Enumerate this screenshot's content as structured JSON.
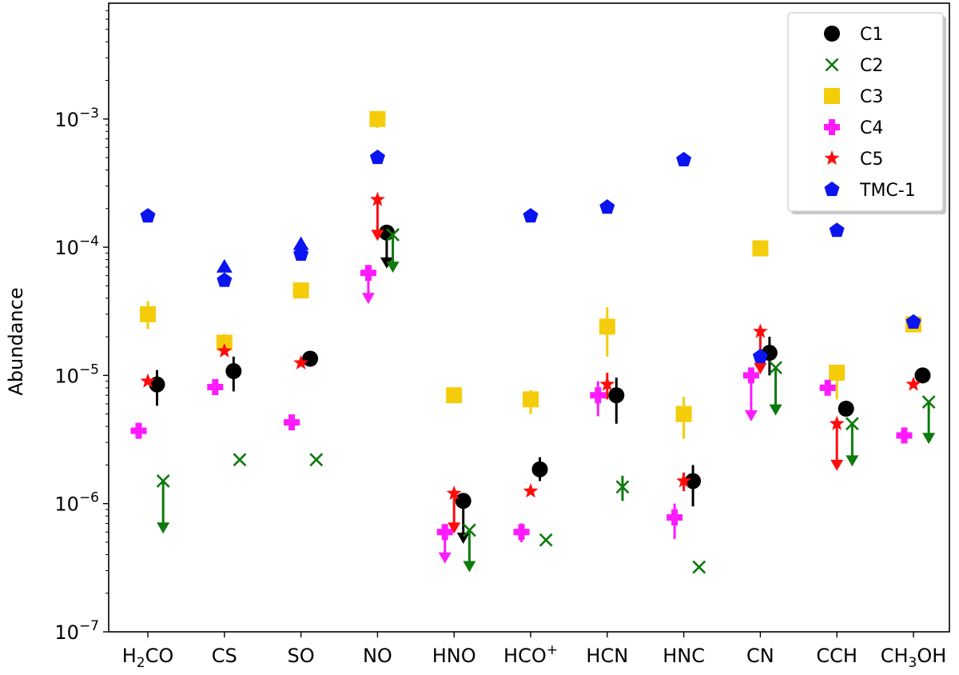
{
  "chart_data": {
    "type": "scatter",
    "title": "",
    "xlabel": "",
    "ylabel": "Abundance",
    "yscale": "log",
    "ylim": [
      1e-07,
      0.008
    ],
    "yticks": [
      {
        "value": 1e-07,
        "base": "10",
        "exp": "−7"
      },
      {
        "value": 1e-06,
        "base": "10",
        "exp": "−6"
      },
      {
        "value": 1e-05,
        "base": "10",
        "exp": "−5"
      },
      {
        "value": 0.0001,
        "base": "10",
        "exp": "−4"
      },
      {
        "value": 0.001,
        "base": "10",
        "exp": "−3"
      }
    ],
    "categories": [
      {
        "base": "H",
        "sub": "2",
        "rest": "CO"
      },
      {
        "base": "CS"
      },
      {
        "base": "SO"
      },
      {
        "base": "NO"
      },
      {
        "base": "HNO"
      },
      {
        "base": "HCO",
        "sup": "+"
      },
      {
        "base": "HCN"
      },
      {
        "base": "HNC"
      },
      {
        "base": "CN"
      },
      {
        "base": "CCH"
      },
      {
        "base": "CH",
        "sub": "3",
        "rest": "OH"
      }
    ],
    "legend_position": "top-right",
    "series": [
      {
        "name": "C1",
        "color": "#000000",
        "marker": "circle",
        "offset": 0.12,
        "points": [
          {
            "i": 0,
            "y": 8.5e-06,
            "lo": 5.8e-06,
            "hi": 1.1e-05
          },
          {
            "i": 1,
            "y": 1.08e-05,
            "lo": 7.5e-06,
            "hi": 1.4e-05
          },
          {
            "i": 2,
            "y": 1.35e-05
          },
          {
            "i": 3,
            "y": 0.00013,
            "limit": 7e-05
          },
          {
            "i": 4,
            "y": 1.05e-06,
            "limit": 5e-07
          },
          {
            "i": 5,
            "y": 1.85e-06,
            "lo": 1.5e-06,
            "hi": 2.3e-06
          },
          {
            "i": 6,
            "y": 7e-06,
            "lo": 4.2e-06,
            "hi": 9.6e-06
          },
          {
            "i": 7,
            "y": 1.5e-06,
            "lo": 9.5e-07,
            "hi": 2e-06
          },
          {
            "i": 8,
            "y": 1.5e-05,
            "lo": 1e-05,
            "hi": 2e-05
          },
          {
            "i": 9,
            "y": 5.5e-06
          },
          {
            "i": 10,
            "y": 1e-05
          }
        ]
      },
      {
        "name": "C2",
        "color": "#0d7a0d",
        "marker": "x",
        "offset": 0.2,
        "points": [
          {
            "i": 0,
            "y": 1.5e-06,
            "limit": 6e-07
          },
          {
            "i": 1,
            "y": 2.2e-06
          },
          {
            "i": 2,
            "y": 2.2e-06
          },
          {
            "i": 3,
            "y": 0.000125,
            "limit": 6.5e-05
          },
          {
            "i": 4,
            "y": 6.2e-07,
            "limit": 3e-07
          },
          {
            "i": 5,
            "y": 5.2e-07
          },
          {
            "i": 6,
            "y": 1.35e-06,
            "lo": 1.05e-06,
            "hi": 1.65e-06
          },
          {
            "i": 7,
            "y": 3.2e-07
          },
          {
            "i": 8,
            "y": 1.15e-05,
            "limit": 5e-06
          },
          {
            "i": 9,
            "y": 4.2e-06,
            "limit": 2e-06
          },
          {
            "i": 10,
            "y": 6.2e-06,
            "limit": 3e-06
          }
        ]
      },
      {
        "name": "C3",
        "color": "#f5cc0a",
        "marker": "square",
        "offset": 0.0,
        "points": [
          {
            "i": 0,
            "y": 3e-05,
            "lo": 2.3e-05,
            "hi": 3.8e-05
          },
          {
            "i": 1,
            "y": 1.8e-05,
            "lo": 1.5e-05,
            "hi": 2.1e-05
          },
          {
            "i": 2,
            "y": 4.6e-05
          },
          {
            "i": 3,
            "y": 0.001,
            "lo": 0.00085,
            "hi": 0.00115
          },
          {
            "i": 4,
            "y": 7e-06
          },
          {
            "i": 5,
            "y": 6.5e-06,
            "lo": 5e-06,
            "hi": 7.7e-06
          },
          {
            "i": 6,
            "y": 2.4e-05,
            "lo": 1.4e-05,
            "hi": 3.4e-05
          },
          {
            "i": 7,
            "y": 5e-06,
            "lo": 3.2e-06,
            "hi": 6.8e-06
          },
          {
            "i": 8,
            "y": 9.8e-05,
            "lo": 8.8e-05,
            "hi": 0.00011
          },
          {
            "i": 9,
            "y": 1.05e-05,
            "lo": 6.5e-06,
            "hi": 1.15e-05
          },
          {
            "i": 10,
            "y": 2.5e-05
          }
        ]
      },
      {
        "name": "C4",
        "color": "#ff1aff",
        "marker": "plus",
        "offset": -0.12,
        "points": [
          {
            "i": 0,
            "y": 3.7e-06
          },
          {
            "i": 1,
            "y": 8.1e-06
          },
          {
            "i": 2,
            "y": 4.3e-06
          },
          {
            "i": 3,
            "y": 6.3e-05,
            "limit": 3.7e-05
          },
          {
            "i": 4,
            "y": 6e-07,
            "limit": 3.5e-07
          },
          {
            "i": 5,
            "y": 6e-07,
            "lo": 5e-07,
            "hi": 7e-07
          },
          {
            "i": 6,
            "y": 7e-06,
            "lo": 4.8e-06,
            "hi": 9e-06
          },
          {
            "i": 7,
            "y": 7.8e-07,
            "lo": 5.3e-07,
            "hi": 1e-06
          },
          {
            "i": 8,
            "y": 1e-05,
            "limit": 4.5e-06
          },
          {
            "i": 9,
            "y": 8e-06
          },
          {
            "i": 10,
            "y": 3.4e-06
          }
        ]
      },
      {
        "name": "C5",
        "color": "#ff0d0d",
        "marker": "star",
        "offset": 0.0,
        "points": [
          {
            "i": 0,
            "y": 9e-06
          },
          {
            "i": 1,
            "y": 1.55e-05
          },
          {
            "i": 2,
            "y": 1.25e-05
          },
          {
            "i": 3,
            "y": 0.000235,
            "limit": 0.000115
          },
          {
            "i": 4,
            "y": 1.2e-06,
            "limit": 6e-07
          },
          {
            "i": 5,
            "y": 1.25e-06
          },
          {
            "i": 6,
            "y": 8.5e-06,
            "lo": 6.5e-06,
            "hi": 1.05e-05
          },
          {
            "i": 7,
            "y": 1.5e-06,
            "lo": 1.25e-06,
            "hi": 1.75e-06
          },
          {
            "i": 8,
            "y": 2.2e-05,
            "limit": 1.05e-05
          },
          {
            "i": 9,
            "y": 4.2e-06,
            "limit": 1.85e-06
          },
          {
            "i": 10,
            "y": 8.5e-06
          }
        ]
      },
      {
        "name": "TMC-1",
        "color": "#0a14f0",
        "marker": "pentagon",
        "offset": 0.0,
        "points": [
          {
            "i": 0,
            "y": 0.000175
          },
          {
            "i": 1,
            "y": 5.5e-05
          },
          {
            "i": 1,
            "y": 7e-05,
            "marker": "triangle"
          },
          {
            "i": 2,
            "y": 8.8e-05
          },
          {
            "i": 2,
            "y": 0.000105,
            "marker": "triangle"
          },
          {
            "i": 3,
            "y": 0.0005
          },
          {
            "i": 5,
            "y": 0.000175
          },
          {
            "i": 6,
            "y": 0.000205
          },
          {
            "i": 7,
            "y": 0.00048
          },
          {
            "i": 8,
            "y": 1.4e-05
          },
          {
            "i": 9,
            "y": 0.000135
          },
          {
            "i": 10,
            "y": 2.6e-05
          }
        ]
      }
    ]
  }
}
